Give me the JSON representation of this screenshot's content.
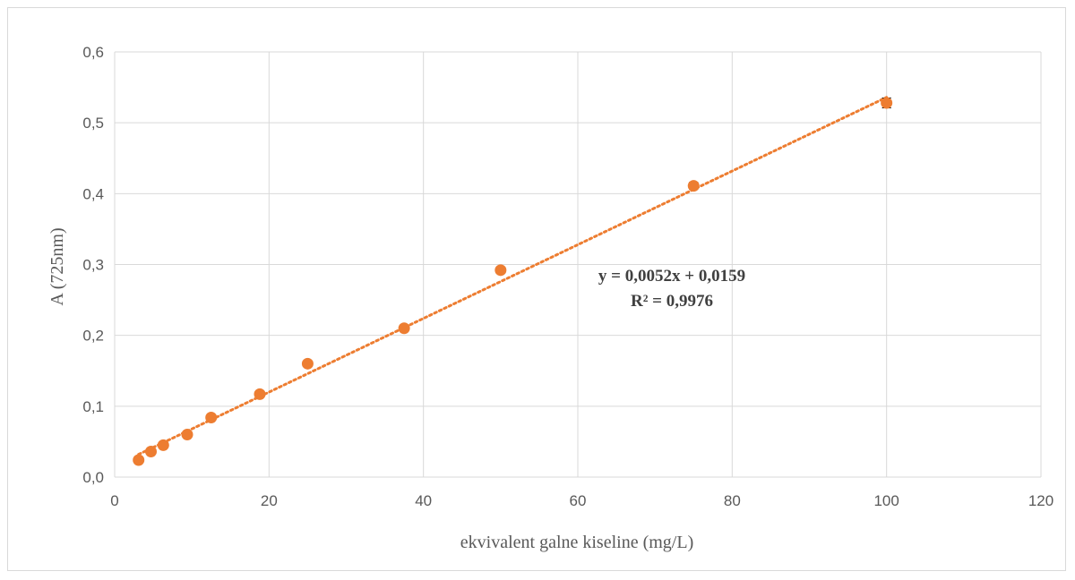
{
  "chart_data": {
    "type": "scatter",
    "xlabel": "ekvivalent galne kiseline (mg/L)",
    "ylabel": "A (725nm)",
    "xlim": [
      0,
      120
    ],
    "ylim": [
      0,
      0.6
    ],
    "xticks": [
      0,
      20,
      40,
      60,
      80,
      100,
      120
    ],
    "yticks": [
      0.0,
      0.1,
      0.2,
      0.3,
      0.4,
      0.5,
      0.6
    ],
    "xtick_labels": [
      "0",
      "20",
      "40",
      "60",
      "80",
      "100",
      "120"
    ],
    "ytick_labels": [
      "0,0",
      "0,1",
      "0,2",
      "0,3",
      "0,4",
      "0,5",
      "0,6"
    ],
    "grid": true,
    "marker_color": "#ED7D31",
    "trendline_color": "#ED7D31",
    "points": [
      {
        "x": 3.1,
        "y": 0.024,
        "err": 0.002
      },
      {
        "x": 4.7,
        "y": 0.036,
        "err": 0.002
      },
      {
        "x": 6.3,
        "y": 0.045,
        "err": 0.002
      },
      {
        "x": 9.4,
        "y": 0.06,
        "err": 0.002
      },
      {
        "x": 12.5,
        "y": 0.084,
        "err": 0.002
      },
      {
        "x": 18.8,
        "y": 0.117,
        "err": 0.002
      },
      {
        "x": 25.0,
        "y": 0.16,
        "err": 0.002
      },
      {
        "x": 37.5,
        "y": 0.21,
        "err": 0.002
      },
      {
        "x": 50.0,
        "y": 0.292,
        "err": 0.002
      },
      {
        "x": 75.0,
        "y": 0.411,
        "err": 0.005
      },
      {
        "x": 100.0,
        "y": 0.528,
        "err": 0.007
      }
    ],
    "trendline": {
      "type": "linear",
      "slope": 0.0052,
      "intercept": 0.0159,
      "x_range": [
        3.1,
        100
      ],
      "equation": "y = 0,0052x + 0,0159",
      "r_squared": "R² = 0,9976"
    }
  }
}
